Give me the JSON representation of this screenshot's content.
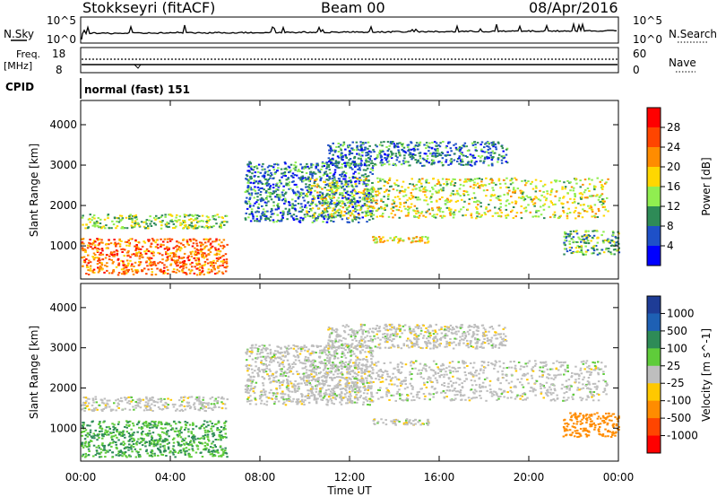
{
  "header": {
    "station": "Stokkseyri (fitACF)",
    "beam": "Beam 00",
    "date": "08/Apr/2016"
  },
  "noise_panel": {
    "left_label": "N.Sky",
    "right_label": "N.Search",
    "ticks_left": [
      "10^5",
      "10^0"
    ],
    "ticks_right": [
      "10^5",
      "10^0"
    ]
  },
  "freq_panel": {
    "left_label_1": "Freq.",
    "left_label_2": "[MHz]",
    "right_label": "Nave",
    "ticks_left": [
      "18",
      "8"
    ],
    "ticks_right": [
      "60",
      "0"
    ]
  },
  "cpid": {
    "label": "CPID",
    "value": "normal (fast) 151"
  },
  "power_colorbar": {
    "title": "Power [dB]",
    "ticks": [
      "28",
      "24",
      "20",
      "16",
      "12",
      "8",
      "4"
    ],
    "colors": [
      "#ff0000",
      "#ff4500",
      "#ff8c00",
      "#ffd700",
      "#90ee50",
      "#2e8b57",
      "#1e50c8",
      "#0000ff"
    ]
  },
  "velocity_colorbar": {
    "title": "Velocity [m s^-1]",
    "ticks": [
      "1000",
      "500",
      "100",
      "25",
      "-25",
      "-100",
      "-500",
      "-1000"
    ],
    "colors": [
      "#1e3c96",
      "#1e60b4",
      "#2e8b57",
      "#5fcc3a",
      "#bebebe",
      "#ffc800",
      "#ff8c00",
      "#ff4500",
      "#ff0000"
    ]
  },
  "chart_data": {
    "type": "heatmap",
    "x_axis": {
      "title": "Time UT",
      "ticks": [
        "00:00",
        "04:00",
        "08:00",
        "12:00",
        "16:00",
        "20:00",
        "00:00"
      ],
      "range_hours": [
        0,
        24
      ]
    },
    "y_axis": {
      "title": "Slant Range [km]",
      "ticks": [
        "1000",
        "2000",
        "3000",
        "4000"
      ],
      "range_km": [
        180,
        4600
      ]
    },
    "scatter_regions": [
      {
        "t0": 0.0,
        "t1": 6.5,
        "r0": 300,
        "r1": 1200,
        "power_db": 24,
        "velocity": 100
      },
      {
        "t0": 0.0,
        "t1": 6.5,
        "r0": 1450,
        "r1": 1800,
        "power_db": 14,
        "velocity": 0
      },
      {
        "t0": 7.3,
        "t1": 13.0,
        "r0": 1600,
        "r1": 3100,
        "power_db": 8,
        "velocity": 0
      },
      {
        "t0": 10.0,
        "t1": 23.5,
        "r0": 1700,
        "r1": 2700,
        "power_db": 16,
        "velocity": 0
      },
      {
        "t0": 13.0,
        "t1": 15.5,
        "r0": 1100,
        "r1": 1250,
        "power_db": 18,
        "velocity": 0
      },
      {
        "t0": 21.5,
        "t1": 24.0,
        "r0": 800,
        "r1": 1400,
        "power_db": 12,
        "velocity": -300
      },
      {
        "t0": 11.0,
        "t1": 19.0,
        "r0": 3000,
        "r1": 3600,
        "power_db": 8,
        "velocity": 0
      }
    ]
  }
}
